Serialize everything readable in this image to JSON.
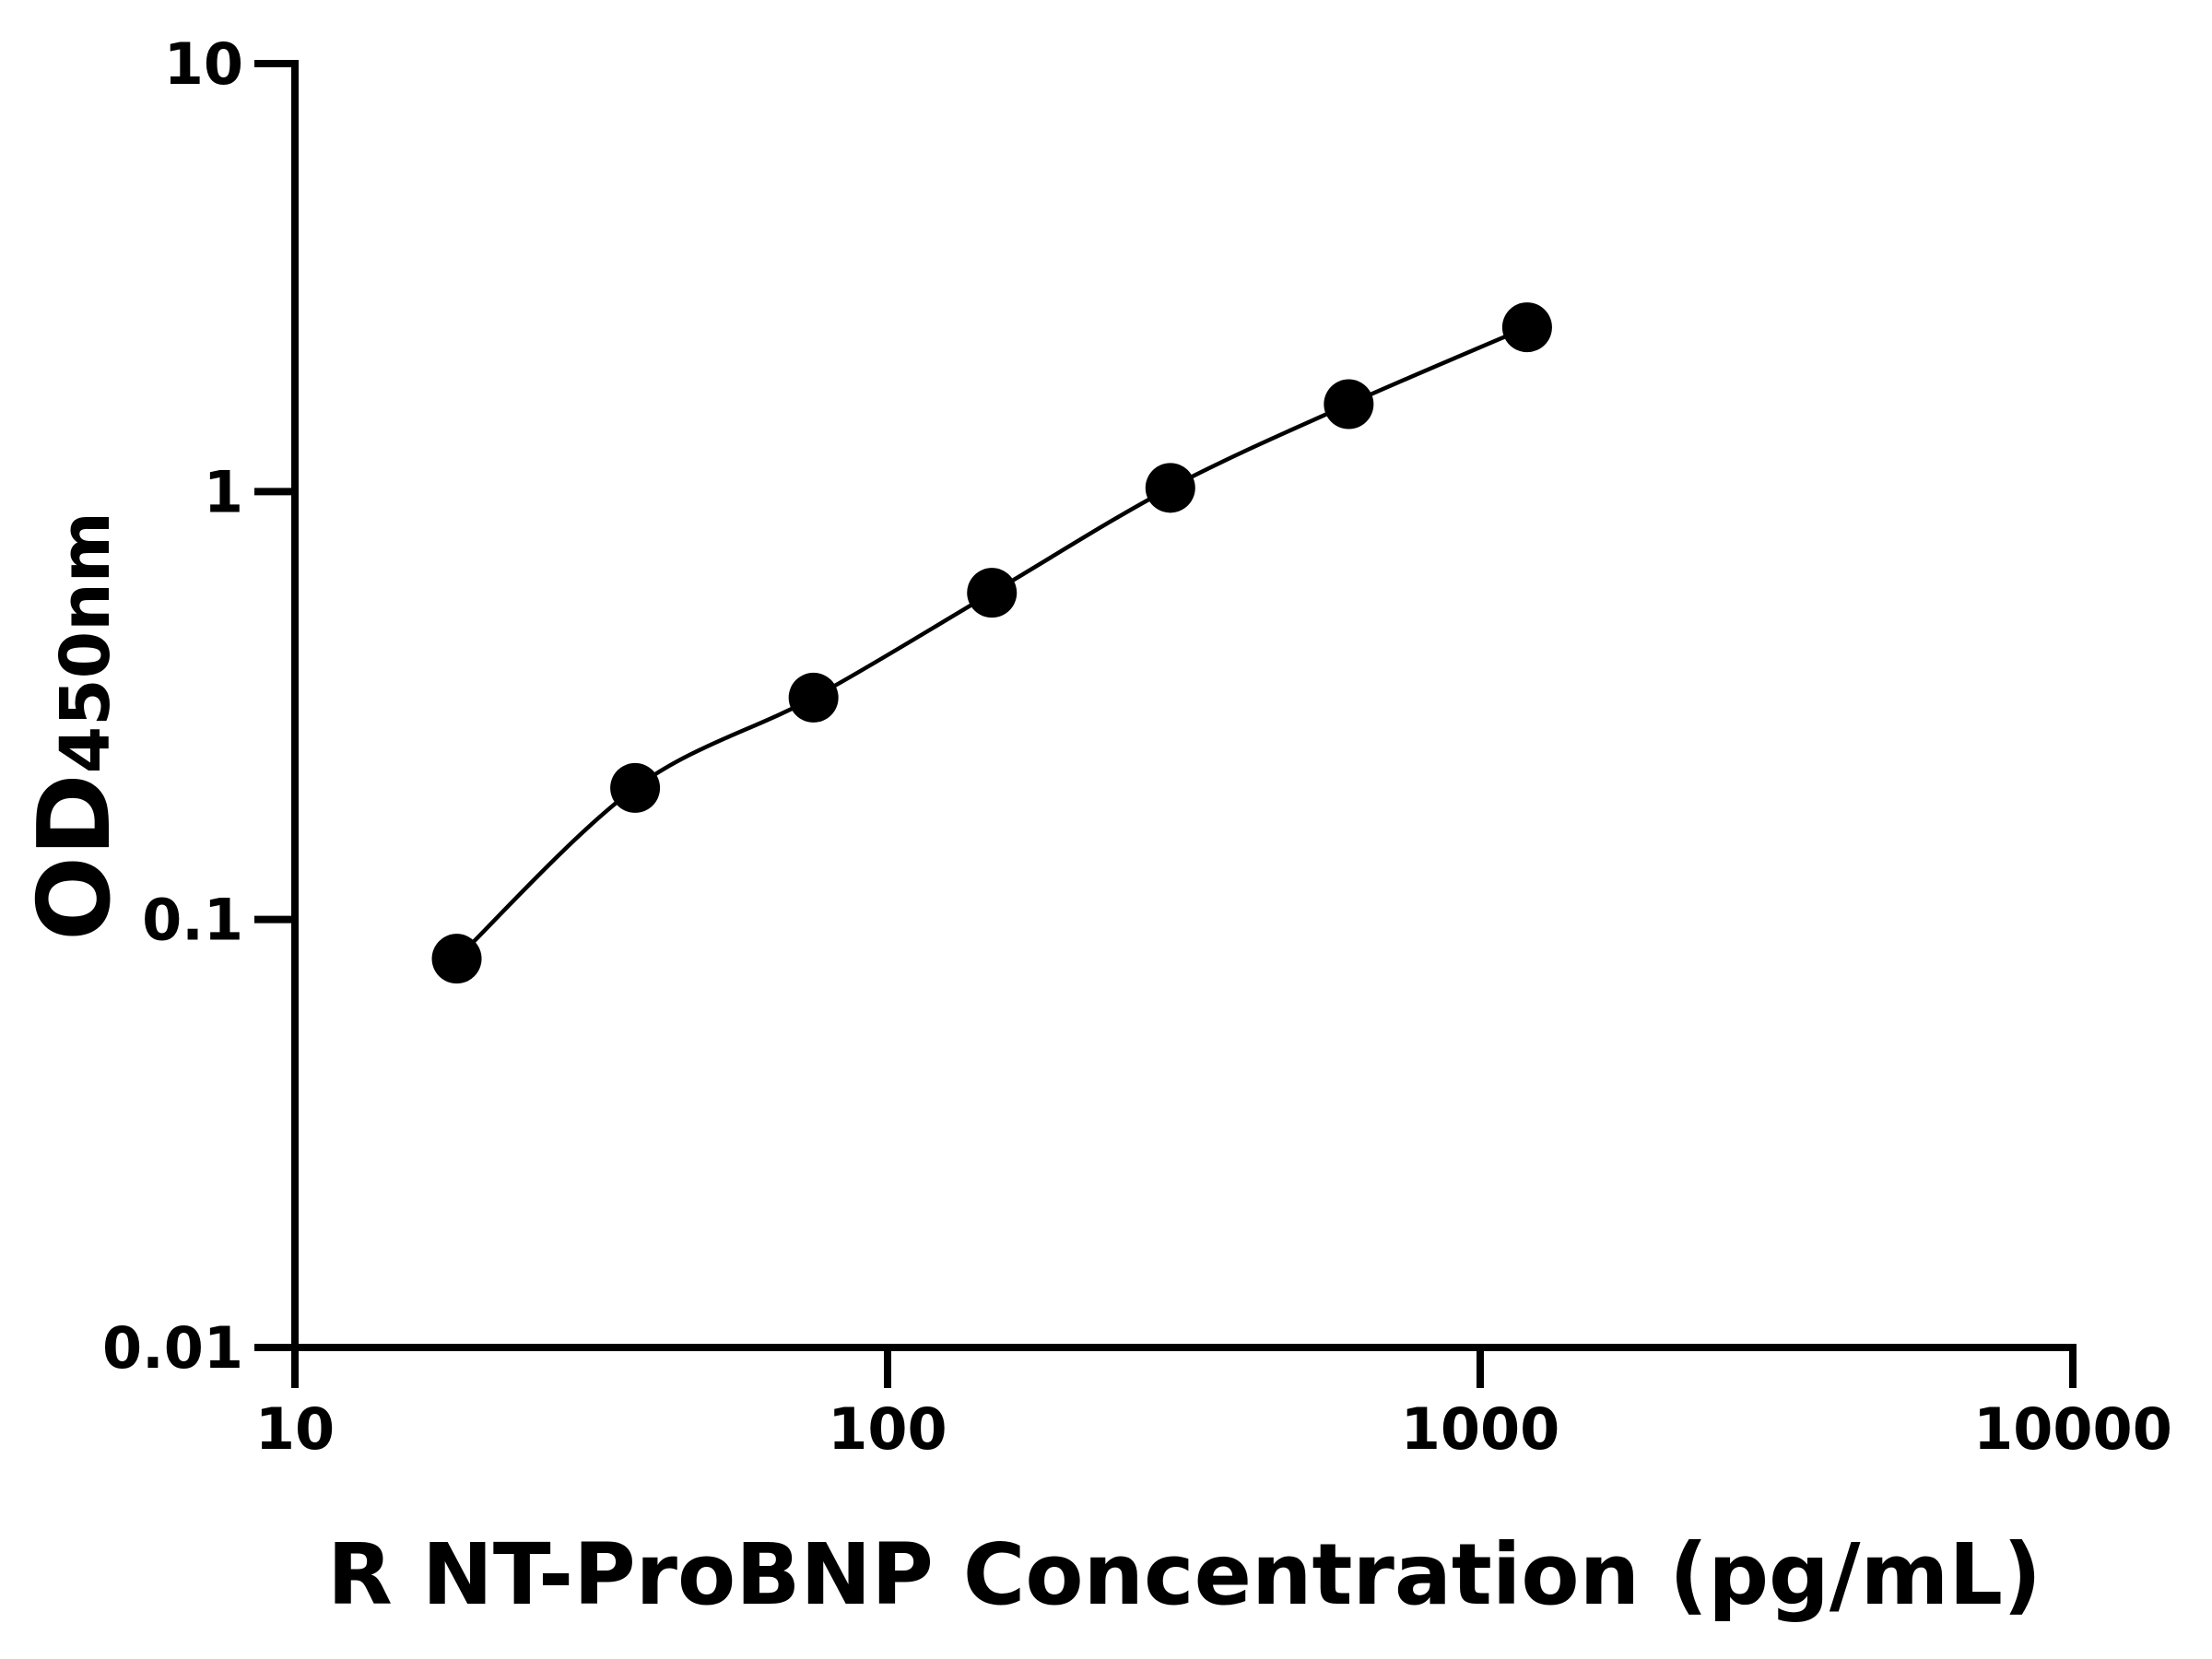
{
  "chart_data": {
    "type": "scatter",
    "x_label": "R NT-ProBNP Concentration (pg/mL)",
    "y_label": "OD",
    "y_label_subscript": "450nm",
    "x_scale": "log",
    "y_scale": "log",
    "xlim": [
      10,
      10000
    ],
    "xticks": [
      10,
      100,
      1000,
      10000
    ],
    "ylim": [
      0.01,
      10
    ],
    "yticks": [
      0.01,
      0.1,
      1,
      10
    ],
    "grid": false,
    "series": [
      {
        "color": "#000000",
        "x": [
          18.75,
          37.5,
          75,
          150,
          300,
          600,
          1200
        ],
        "values": [
          0.081,
          0.203,
          0.33,
          0.58,
          1.02,
          1.6,
          2.42
        ]
      }
    ]
  }
}
